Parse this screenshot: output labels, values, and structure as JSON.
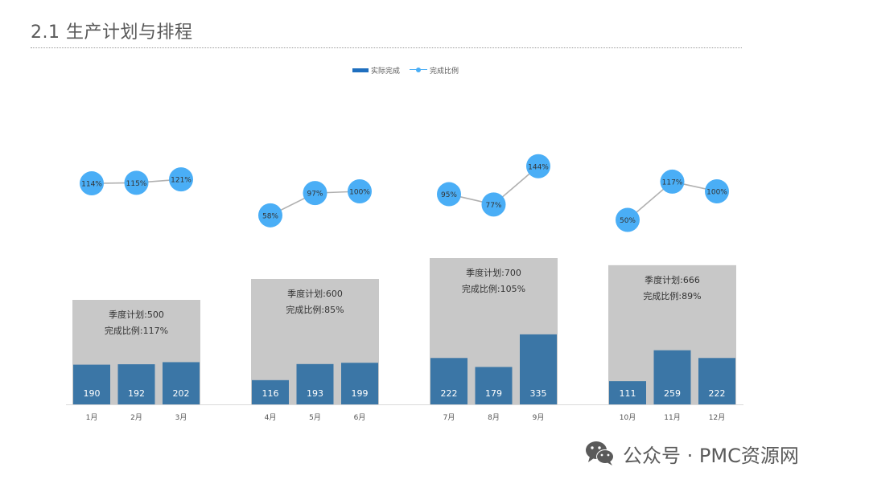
{
  "header": {
    "title": "2.1 生产计划与排程"
  },
  "watermark": {
    "text": "公众号 · PMC资源网",
    "icon": "wechat-icon"
  },
  "colors": {
    "bar": "#3b76a6",
    "panel": "#c8c8c8",
    "line": "#b0b0b0",
    "marker": "#4aaef6",
    "legend_bar": "#1f6fbf",
    "text_dark": "#333333",
    "text_white": "#ffffff"
  },
  "chart_data": {
    "type": "bar",
    "legend": {
      "bar_label": "实际完成",
      "line_label": "完成比例",
      "placement": "top-center"
    },
    "quarters": [
      {
        "plan_text": "季度计划:500",
        "ratio_text": "完成比例:117%",
        "plan": 500,
        "months": [
          "1月",
          "2月",
          "3月"
        ],
        "actual": [
          190,
          192,
          202
        ],
        "completion": [
          114,
          115,
          121
        ]
      },
      {
        "plan_text": "季度计划:600",
        "ratio_text": "完成比例:85%",
        "plan": 600,
        "months": [
          "4月",
          "5月",
          "6月"
        ],
        "actual": [
          116,
          193,
          199
        ],
        "completion": [
          58,
          97,
          100
        ]
      },
      {
        "plan_text": "季度计划:700",
        "ratio_text": "完成比例:105%",
        "plan": 700,
        "months": [
          "7月",
          "8月",
          "9月"
        ],
        "actual": [
          222,
          179,
          335
        ],
        "completion": [
          95,
          77,
          144
        ]
      },
      {
        "plan_text": "季度计划:666",
        "ratio_text": "完成比例:89%",
        "plan": 666,
        "months": [
          "10月",
          "11月",
          "12月"
        ],
        "actual": [
          111,
          259,
          222
        ],
        "completion": [
          50,
          117,
          100
        ]
      }
    ]
  }
}
